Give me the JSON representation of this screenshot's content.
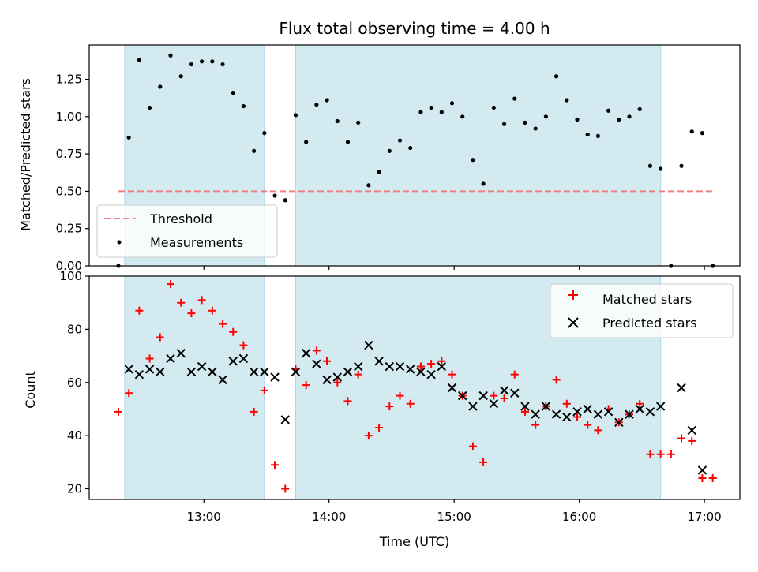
{
  "chart_data": [
    {
      "type": "scatter",
      "title": "Flux total observing time = 4.00 h",
      "xlabel": "",
      "ylabel": "Matched/Predicted stars",
      "xlim": [
        "12:05",
        "17:17"
      ],
      "ylim": [
        0,
        1.48
      ],
      "yticks": [
        "0.00",
        "0.25",
        "0.50",
        "0.75",
        "1.00",
        "1.25"
      ],
      "ytick_values": [
        0,
        0.25,
        0.5,
        0.75,
        1.0,
        1.25
      ],
      "xticks": [
        "13:00",
        "14:00",
        "15:00",
        "16:00",
        "17:00"
      ],
      "shaded_intervals": [
        [
          "12:22",
          "13:29"
        ],
        [
          "13:44",
          "16:39"
        ]
      ],
      "shade_color": "#d3eaf0",
      "threshold": {
        "name": "Threshold",
        "value": 0.5,
        "x_range": [
          "12:19",
          "17:05"
        ],
        "color": "#f08080"
      },
      "legend": {
        "position": "lower left",
        "entries": [
          "Threshold",
          "Measurements"
        ]
      },
      "series": [
        {
          "name": "Measurements",
          "color": "#000000",
          "marker": "dot",
          "points": [
            [
              "12:19",
              0.0
            ],
            [
              "12:24",
              0.86
            ],
            [
              "12:29",
              1.38
            ],
            [
              "12:34",
              1.06
            ],
            [
              "12:39",
              1.2
            ],
            [
              "12:44",
              1.41
            ],
            [
              "12:49",
              1.27
            ],
            [
              "12:54",
              1.35
            ],
            [
              "12:59",
              1.37
            ],
            [
              "13:04",
              1.37
            ],
            [
              "13:09",
              1.35
            ],
            [
              "13:14",
              1.16
            ],
            [
              "13:19",
              1.07
            ],
            [
              "13:24",
              0.77
            ],
            [
              "13:29",
              0.89
            ],
            [
              "13:34",
              0.47
            ],
            [
              "13:39",
              0.44
            ],
            [
              "13:44",
              1.01
            ],
            [
              "13:49",
              0.83
            ],
            [
              "13:54",
              1.08
            ],
            [
              "13:59",
              1.11
            ],
            [
              "14:04",
              0.97
            ],
            [
              "14:09",
              0.83
            ],
            [
              "14:14",
              0.96
            ],
            [
              "14:19",
              0.54
            ],
            [
              "14:24",
              0.63
            ],
            [
              "14:29",
              0.77
            ],
            [
              "14:34",
              0.84
            ],
            [
              "14:39",
              0.79
            ],
            [
              "14:44",
              1.03
            ],
            [
              "14:49",
              1.06
            ],
            [
              "14:54",
              1.03
            ],
            [
              "14:59",
              1.09
            ],
            [
              "15:04",
              1.0
            ],
            [
              "15:09",
              0.71
            ],
            [
              "15:14",
              0.55
            ],
            [
              "15:19",
              1.06
            ],
            [
              "15:24",
              0.95
            ],
            [
              "15:29",
              1.12
            ],
            [
              "15:34",
              0.96
            ],
            [
              "15:39",
              0.92
            ],
            [
              "15:44",
              1.0
            ],
            [
              "15:49",
              1.27
            ],
            [
              "15:54",
              1.11
            ],
            [
              "15:59",
              0.98
            ],
            [
              "16:04",
              0.88
            ],
            [
              "16:09",
              0.87
            ],
            [
              "16:14",
              1.04
            ],
            [
              "16:19",
              0.98
            ],
            [
              "16:24",
              1.0
            ],
            [
              "16:29",
              1.05
            ],
            [
              "16:34",
              0.67
            ],
            [
              "16:39",
              0.65
            ],
            [
              "16:44",
              0.0
            ],
            [
              "16:49",
              0.67
            ],
            [
              "16:54",
              0.9
            ],
            [
              "16:59",
              0.89
            ],
            [
              "17:04",
              0.0
            ]
          ]
        }
      ]
    },
    {
      "type": "scatter",
      "title": "",
      "xlabel": "Time (UTC)",
      "ylabel": "Count",
      "xlim": [
        "12:05",
        "17:17"
      ],
      "ylim": [
        16,
        100
      ],
      "yticks": [
        "20",
        "40",
        "60",
        "80",
        "100"
      ],
      "ytick_values": [
        20,
        40,
        60,
        80,
        100
      ],
      "xticks": [
        "13:00",
        "14:00",
        "15:00",
        "16:00",
        "17:00"
      ],
      "shaded_intervals": [
        [
          "12:22",
          "13:29"
        ],
        [
          "13:44",
          "16:39"
        ]
      ],
      "shade_color": "#d3eaf0",
      "legend": {
        "position": "upper right",
        "entries": [
          "Matched stars",
          "Predicted stars"
        ]
      },
      "series": [
        {
          "name": "Matched stars",
          "color": "#ff0000",
          "marker": "plus",
          "points": [
            [
              "12:19",
              49
            ],
            [
              "12:24",
              56
            ],
            [
              "12:29",
              87
            ],
            [
              "12:34",
              69
            ],
            [
              "12:39",
              77
            ],
            [
              "12:44",
              97
            ],
            [
              "12:49",
              90
            ],
            [
              "12:54",
              86
            ],
            [
              "12:59",
              91
            ],
            [
              "13:04",
              87
            ],
            [
              "13:09",
              82
            ],
            [
              "13:14",
              79
            ],
            [
              "13:19",
              74
            ],
            [
              "13:24",
              49
            ],
            [
              "13:29",
              57
            ],
            [
              "13:34",
              29
            ],
            [
              "13:39",
              20
            ],
            [
              "13:44",
              65
            ],
            [
              "13:49",
              59
            ],
            [
              "13:54",
              72
            ],
            [
              "13:59",
              68
            ],
            [
              "14:04",
              60
            ],
            [
              "14:09",
              53
            ],
            [
              "14:14",
              63
            ],
            [
              "14:19",
              40
            ],
            [
              "14:24",
              43
            ],
            [
              "14:29",
              51
            ],
            [
              "14:34",
              55
            ],
            [
              "14:39",
              52
            ],
            [
              "14:44",
              66
            ],
            [
              "14:49",
              67
            ],
            [
              "14:54",
              68
            ],
            [
              "14:59",
              63
            ],
            [
              "15:04",
              55
            ],
            [
              "15:09",
              36
            ],
            [
              "15:14",
              30
            ],
            [
              "15:19",
              55
            ],
            [
              "15:24",
              54
            ],
            [
              "15:29",
              63
            ],
            [
              "15:34",
              49
            ],
            [
              "15:39",
              44
            ],
            [
              "15:44",
              51
            ],
            [
              "15:49",
              61
            ],
            [
              "15:54",
              52
            ],
            [
              "15:59",
              47
            ],
            [
              "16:04",
              44
            ],
            [
              "16:09",
              42
            ],
            [
              "16:14",
              50
            ],
            [
              "16:19",
              45
            ],
            [
              "16:24",
              48
            ],
            [
              "16:29",
              52
            ],
            [
              "16:34",
              33
            ],
            [
              "16:39",
              33
            ],
            [
              "16:44",
              33
            ],
            [
              "16:49",
              39
            ],
            [
              "16:54",
              38
            ],
            [
              "16:59",
              24
            ],
            [
              "17:04",
              24
            ]
          ]
        },
        {
          "name": "Predicted stars",
          "color": "#000000",
          "marker": "x",
          "points": [
            [
              "12:24",
              65
            ],
            [
              "12:29",
              63
            ],
            [
              "12:34",
              65
            ],
            [
              "12:39",
              64
            ],
            [
              "12:44",
              69
            ],
            [
              "12:49",
              71
            ],
            [
              "12:54",
              64
            ],
            [
              "12:59",
              66
            ],
            [
              "13:04",
              64
            ],
            [
              "13:09",
              61
            ],
            [
              "13:14",
              68
            ],
            [
              "13:19",
              69
            ],
            [
              "13:24",
              64
            ],
            [
              "13:29",
              64
            ],
            [
              "13:34",
              62
            ],
            [
              "13:39",
              46
            ],
            [
              "13:44",
              64
            ],
            [
              "13:49",
              71
            ],
            [
              "13:54",
              67
            ],
            [
              "13:59",
              61
            ],
            [
              "14:04",
              62
            ],
            [
              "14:09",
              64
            ],
            [
              "14:14",
              66
            ],
            [
              "14:19",
              74
            ],
            [
              "14:24",
              68
            ],
            [
              "14:29",
              66
            ],
            [
              "14:34",
              66
            ],
            [
              "14:39",
              65
            ],
            [
              "14:44",
              64
            ],
            [
              "14:49",
              63
            ],
            [
              "14:54",
              66
            ],
            [
              "14:59",
              58
            ],
            [
              "15:04",
              55
            ],
            [
              "15:09",
              51
            ],
            [
              "15:14",
              55
            ],
            [
              "15:19",
              52
            ],
            [
              "15:24",
              57
            ],
            [
              "15:29",
              56
            ],
            [
              "15:34",
              51
            ],
            [
              "15:39",
              48
            ],
            [
              "15:44",
              51
            ],
            [
              "15:49",
              48
            ],
            [
              "15:54",
              47
            ],
            [
              "15:59",
              49
            ],
            [
              "16:04",
              50
            ],
            [
              "16:09",
              48
            ],
            [
              "16:14",
              49
            ],
            [
              "16:19",
              45
            ],
            [
              "16:24",
              48
            ],
            [
              "16:29",
              50
            ],
            [
              "16:34",
              49
            ],
            [
              "16:39",
              51
            ],
            [
              "16:49",
              58
            ],
            [
              "16:54",
              42
            ],
            [
              "16:59",
              27
            ]
          ]
        }
      ]
    }
  ]
}
